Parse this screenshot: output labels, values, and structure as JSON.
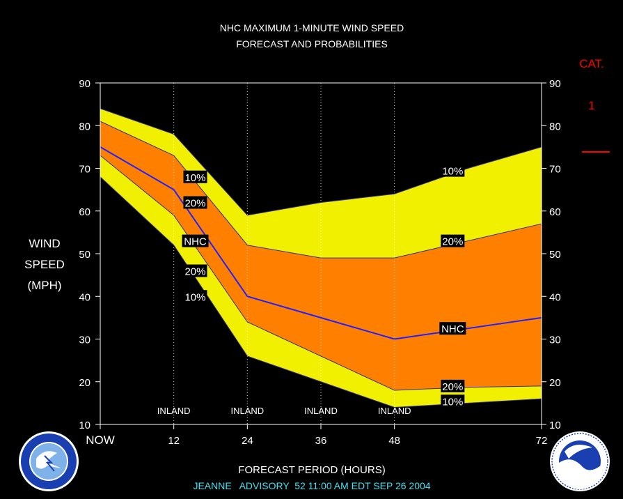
{
  "title_line1": "NHC MAXIMUM 1-MINUTE WIND SPEED",
  "title_line2": "FORECAST AND PROBABILITIES",
  "ylabel_lines": [
    "WIND",
    "SPEED",
    "(MPH)"
  ],
  "xlabel": "FORECAST PERIOD (HOURS)",
  "footer": "JEANNE   ADVISORY  52 11:00 AM EDT SEP 26 2004",
  "category": {
    "label": "CAT.",
    "value": "1",
    "threshold_mph": 74
  },
  "colors": {
    "outer_band": "#f0f000",
    "inner_band": "#ff8000",
    "nhc_line": "#2020ff",
    "category": "#ff0000",
    "footer_text": "#40e0f0",
    "axes": "#ffffff"
  },
  "chart_data": {
    "type": "area",
    "x_tick_labels": [
      "NOW",
      "12",
      "24",
      "36",
      "48",
      "72"
    ],
    "x_ticks": [
      0,
      12,
      24,
      36,
      48,
      72
    ],
    "xlim": [
      0,
      72
    ],
    "ylim": [
      10,
      90
    ],
    "y_ticks": [
      10,
      20,
      30,
      40,
      50,
      60,
      70,
      80,
      90
    ],
    "x": [
      0,
      12,
      24,
      36,
      48,
      60,
      72
    ],
    "inland_hours": [
      12,
      24,
      36,
      48
    ],
    "inland_label": "INLAND",
    "series": [
      {
        "name": "10%",
        "role": "upper10",
        "values": [
          84,
          78,
          59,
          62,
          64,
          70,
          75
        ]
      },
      {
        "name": "20%",
        "role": "upper20",
        "values": [
          81,
          73,
          52,
          49,
          49,
          53,
          57
        ]
      },
      {
        "name": "NHC",
        "role": "nhc",
        "values": [
          75,
          65,
          40,
          35,
          30,
          32.5,
          35
        ]
      },
      {
        "name": "20%",
        "role": "lower20",
        "values": [
          73,
          59,
          34,
          26,
          18,
          18.7,
          19
        ]
      },
      {
        "name": "10%",
        "role": "lower10",
        "values": [
          68,
          52,
          26,
          20,
          14,
          15,
          16
        ]
      }
    ],
    "band_labels": [
      {
        "text": "10%",
        "x": 15.5,
        "y": 68
      },
      {
        "text": "20%",
        "x": 15.5,
        "y": 62
      },
      {
        "text": "NHC",
        "x": 15.5,
        "y": 53
      },
      {
        "text": "20%",
        "x": 15.5,
        "y": 46
      },
      {
        "text": "10%",
        "x": 15.5,
        "y": 40
      },
      {
        "text": "10%",
        "x": 57.5,
        "y": 69.5
      },
      {
        "text": "20%",
        "x": 57.5,
        "y": 53
      },
      {
        "text": "NHC",
        "x": 57.5,
        "y": 32.5
      },
      {
        "text": "20%",
        "x": 57.5,
        "y": 19
      },
      {
        "text": "10%",
        "x": 57.5,
        "y": 15.5
      }
    ]
  }
}
